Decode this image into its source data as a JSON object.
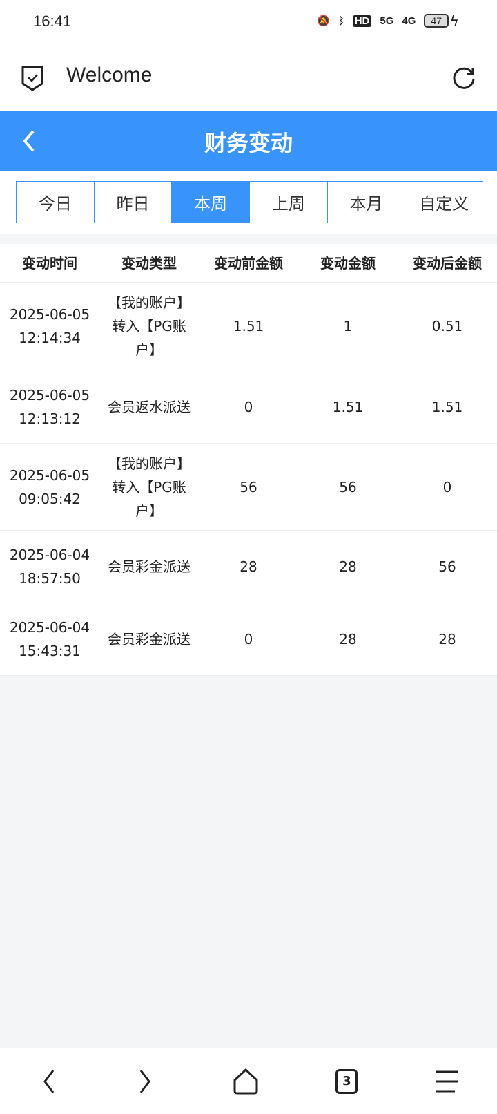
{
  "status": {
    "time": "16:41",
    "battery": "47",
    "network": [
      "5G",
      "4G"
    ],
    "hd": "HD"
  },
  "browser": {
    "title": "Welcome"
  },
  "header": {
    "title": "财务变动"
  },
  "tabs": [
    {
      "label": "今日"
    },
    {
      "label": "昨日"
    },
    {
      "label": "本周",
      "active": true
    },
    {
      "label": "上周"
    },
    {
      "label": "本月"
    },
    {
      "label": "自定义"
    }
  ],
  "table": {
    "columns": [
      "变动时间",
      "变动类型",
      "变动前金额",
      "变动金额",
      "变动后金额"
    ],
    "rows": [
      {
        "date": "2025-06-05",
        "time": "12:14:34",
        "type": [
          "【我的账户】",
          "转入【PG账",
          "户】"
        ],
        "before": "1.51",
        "amount": "1",
        "after": "0.51"
      },
      {
        "date": "2025-06-05",
        "time": "12:13:12",
        "type": [
          "会员返水派送"
        ],
        "before": "0",
        "amount": "1.51",
        "after": "1.51"
      },
      {
        "date": "2025-06-05",
        "time": "09:05:42",
        "type": [
          "【我的账户】",
          "转入【PG账",
          "户】"
        ],
        "before": "56",
        "amount": "56",
        "after": "0"
      },
      {
        "date": "2025-06-04",
        "time": "18:57:50",
        "type": [
          "会员彩金派送"
        ],
        "before": "28",
        "amount": "28",
        "after": "56"
      },
      {
        "date": "2025-06-04",
        "time": "15:43:31",
        "type": [
          "会员彩金派送"
        ],
        "before": "0",
        "amount": "28",
        "after": "28"
      }
    ]
  },
  "bottom_nav": {
    "tab_count": "3"
  },
  "colors": {
    "accent": "#3894fb"
  }
}
